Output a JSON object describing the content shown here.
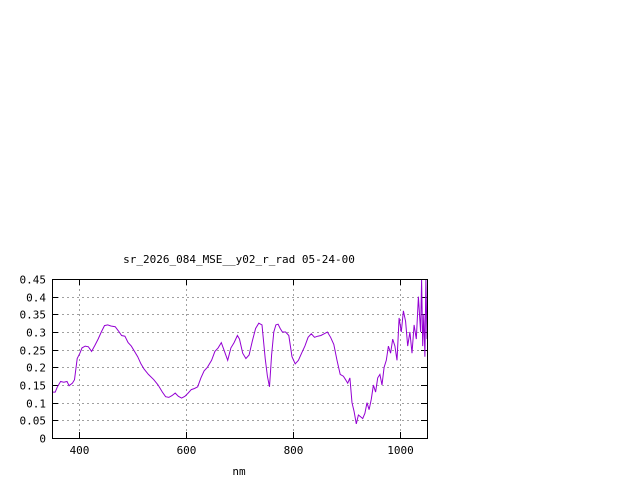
{
  "chart_data": {
    "type": "line",
    "title": "sr_2026_084_MSE__y02_r_rad 05-24-00",
    "xlabel": "nm",
    "ylabel": "",
    "xlim": [
      350,
      1050
    ],
    "ylim": [
      0,
      0.45
    ],
    "grid": true,
    "x_ticks": [
      400,
      600,
      800,
      1000
    ],
    "x_tick_labels": [
      "400",
      "600",
      "800",
      "1000"
    ],
    "y_ticks": [
      0,
      0.05,
      0.1,
      0.15,
      0.2,
      0.25,
      0.3,
      0.35,
      0.4,
      0.45
    ],
    "y_tick_labels": [
      "0",
      "0.05",
      "0.1",
      "0.15",
      "0.2",
      "0.25",
      "0.3",
      "0.35",
      "0.4",
      "0.45"
    ],
    "colors": {
      "series": "#9400d3",
      "grid": "#a0a0a0",
      "axes": "#000000"
    },
    "series": [
      {
        "x": [
          350,
          356,
          360,
          366,
          372,
          378,
          382,
          388,
          392,
          397,
          402,
          406,
          412,
          418,
          424,
          430,
          436,
          442,
          448,
          454,
          460,
          468,
          474,
          480,
          486,
          492,
          498,
          504,
          510,
          516,
          522,
          530,
          540,
          548,
          556,
          562,
          568,
          574,
          580,
          586,
          592,
          598,
          604,
          610,
          616,
          622,
          628,
          634,
          640,
          648,
          654,
          660,
          666,
          672,
          678,
          684,
          690,
          696,
          700,
          706,
          712,
          718,
          724,
          730,
          736,
          742,
          748,
          752,
          756,
          760,
          764,
          768,
          772,
          776,
          780,
          786,
          792,
          798,
          804,
          810,
          816,
          822,
          828,
          834,
          840,
          846,
          852,
          858,
          864,
          870,
          876,
          882,
          888,
          894,
          898,
          902,
          906,
          910,
          914,
          918,
          922,
          926,
          930,
          934,
          938,
          942,
          946,
          950,
          954,
          958,
          962,
          966,
          970,
          974,
          978,
          982,
          986,
          990,
          994,
          998,
          1002,
          1006,
          1010,
          1014,
          1018,
          1022,
          1026,
          1030,
          1034,
          1038,
          1040,
          1042,
          1044,
          1046,
          1048,
          1050
        ],
        "y": [
          0.13,
          0.13,
          0.145,
          0.16,
          0.158,
          0.16,
          0.148,
          0.155,
          0.165,
          0.225,
          0.24,
          0.255,
          0.26,
          0.258,
          0.245,
          0.262,
          0.28,
          0.3,
          0.318,
          0.32,
          0.317,
          0.315,
          0.303,
          0.29,
          0.288,
          0.27,
          0.26,
          0.245,
          0.23,
          0.21,
          0.195,
          0.18,
          0.165,
          0.15,
          0.13,
          0.117,
          0.115,
          0.12,
          0.127,
          0.118,
          0.113,
          0.118,
          0.127,
          0.137,
          0.14,
          0.145,
          0.17,
          0.19,
          0.2,
          0.22,
          0.245,
          0.255,
          0.27,
          0.245,
          0.22,
          0.255,
          0.27,
          0.29,
          0.28,
          0.24,
          0.225,
          0.235,
          0.275,
          0.31,
          0.325,
          0.32,
          0.225,
          0.175,
          0.145,
          0.235,
          0.3,
          0.32,
          0.322,
          0.31,
          0.3,
          0.3,
          0.29,
          0.23,
          0.21,
          0.22,
          0.24,
          0.26,
          0.285,
          0.295,
          0.285,
          0.288,
          0.29,
          0.295,
          0.3,
          0.285,
          0.265,
          0.22,
          0.18,
          0.175,
          0.165,
          0.155,
          0.17,
          0.1,
          0.075,
          0.04,
          0.065,
          0.06,
          0.055,
          0.07,
          0.1,
          0.08,
          0.11,
          0.15,
          0.13,
          0.17,
          0.18,
          0.15,
          0.2,
          0.22,
          0.26,
          0.24,
          0.28,
          0.26,
          0.22,
          0.34,
          0.3,
          0.36,
          0.33,
          0.26,
          0.3,
          0.24,
          0.32,
          0.28,
          0.4,
          0.3,
          0.45,
          0.26,
          0.35,
          0.23,
          0.45,
          0.28
        ]
      }
    ]
  }
}
